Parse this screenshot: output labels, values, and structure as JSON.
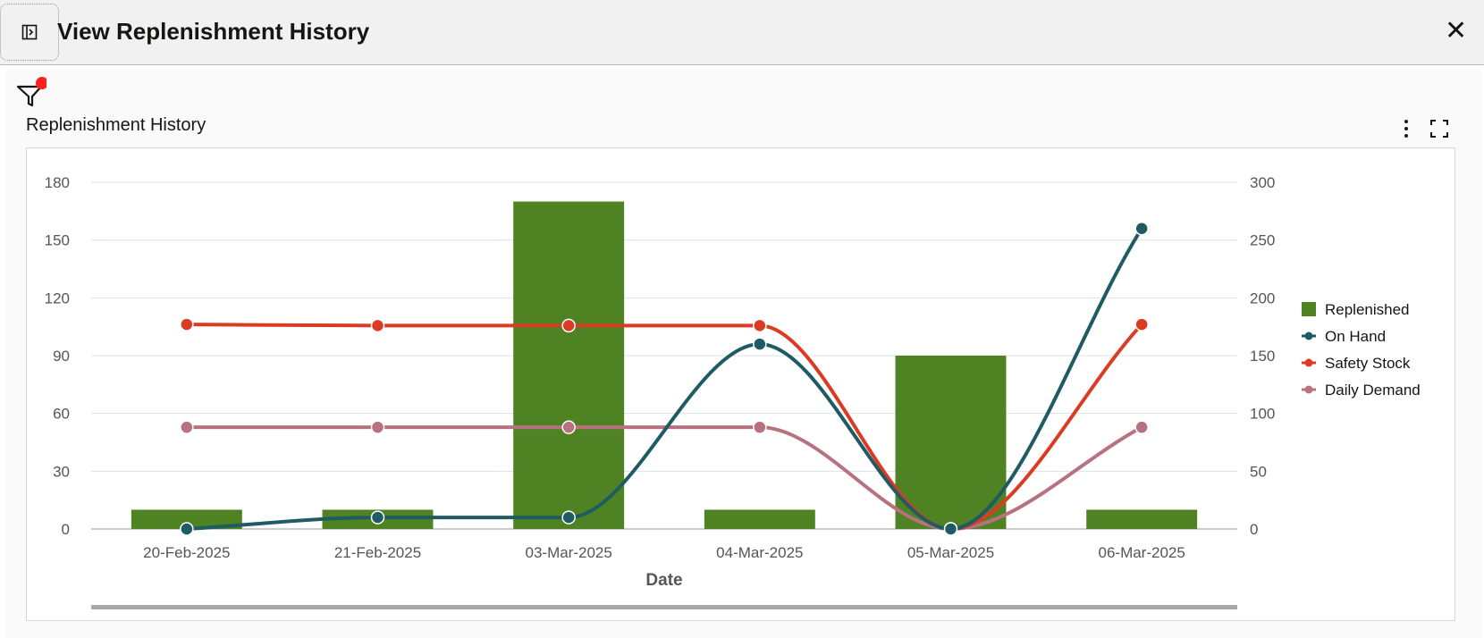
{
  "header": {
    "title": "View Replenishment History",
    "close_icon": "close-icon",
    "panel_icon": "panel-toggle-icon"
  },
  "toolbar": {
    "filter_icon": "filter-icon",
    "filter_badge_color": "#ff2020"
  },
  "chart_title": "Replenishment History",
  "colors": {
    "Replenished": "#4e8222",
    "On Hand": "#1f5b63",
    "Safety Stock": "#dc3b23",
    "Daily Demand": "#b8717f"
  },
  "chart_data": {
    "type": "bar+line",
    "title": "Replenishment History",
    "xlabel": "Date",
    "categories": [
      "20-Feb-2025",
      "21-Feb-2025",
      "03-Mar-2025",
      "04-Mar-2025",
      "05-Mar-2025",
      "06-Mar-2025"
    ],
    "y_left": {
      "range": [
        0,
        180
      ],
      "ticks": [
        0,
        30,
        60,
        90,
        120,
        150,
        180
      ]
    },
    "y_right": {
      "range": [
        0,
        300
      ],
      "ticks": [
        0,
        50,
        100,
        150,
        200,
        250,
        300
      ]
    },
    "series": [
      {
        "name": "Replenished",
        "type": "bar",
        "axis": "left",
        "values": [
          10,
          10,
          170,
          10,
          90,
          10
        ]
      },
      {
        "name": "On Hand",
        "type": "line",
        "axis": "right",
        "values": [
          0,
          10,
          10,
          160,
          0,
          260
        ]
      },
      {
        "name": "Safety Stock",
        "type": "line",
        "axis": "right",
        "values": [
          177,
          176,
          176,
          176,
          0,
          177
        ]
      },
      {
        "name": "Daily Demand",
        "type": "line",
        "axis": "right",
        "values": [
          88,
          88,
          88,
          88,
          0,
          88
        ]
      }
    ],
    "legend": "right",
    "grid": true
  }
}
